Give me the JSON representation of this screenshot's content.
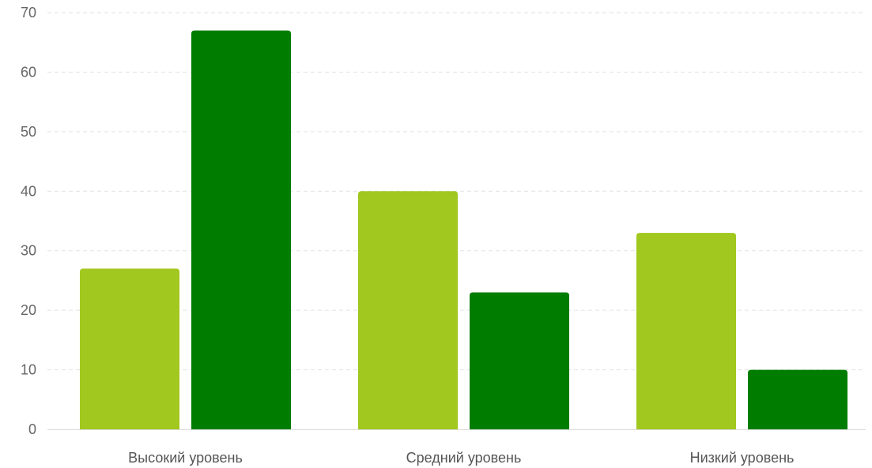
{
  "chart_data": {
    "type": "bar",
    "categories": [
      "Высокий уровень",
      "Средний уровень",
      "Низкий уровень"
    ],
    "series": [
      {
        "values": [
          27,
          40,
          33
        ],
        "color": "#a0c81e"
      },
      {
        "values": [
          67,
          23,
          10
        ],
        "color": "#007d00"
      }
    ],
    "ylim": [
      0,
      70
    ],
    "yticks": [
      0,
      10,
      20,
      30,
      40,
      50,
      60,
      70
    ],
    "grid": true,
    "legend": "none"
  }
}
